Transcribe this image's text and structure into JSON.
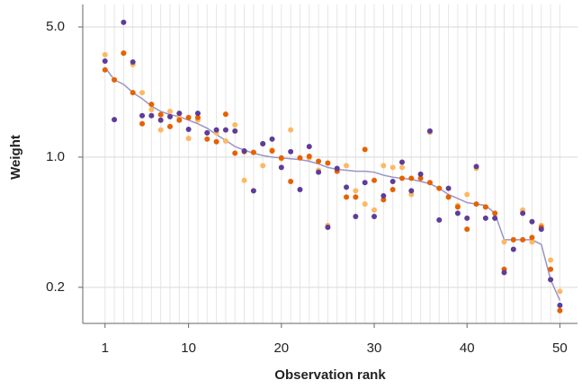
{
  "chart_data": {
    "type": "scatter",
    "x_label": "Observation rank",
    "y_label": "Weight",
    "x": [
      1,
      2,
      3,
      4,
      5,
      6,
      7,
      8,
      9,
      10,
      11,
      12,
      13,
      14,
      15,
      16,
      17,
      18,
      19,
      20,
      21,
      22,
      23,
      24,
      25,
      26,
      27,
      28,
      29,
      30,
      31,
      32,
      33,
      34,
      35,
      36,
      37,
      38,
      39,
      40,
      41,
      42,
      43,
      44,
      45,
      46,
      47,
      48,
      49,
      50
    ],
    "xlim": [
      -1.4,
      51.9
    ],
    "xticks": [
      1,
      10,
      20,
      30,
      40,
      50
    ],
    "ylim": [
      0.128,
      6.6
    ],
    "ylog": true,
    "yticks": [
      {
        "value": 0.2,
        "label": "0.2"
      },
      {
        "value": 1,
        "label": "1.0"
      },
      {
        "value": 5,
        "label": "5.0"
      }
    ],
    "grid": true,
    "series": [
      {
        "color": "#fdb863",
        "values": [
          3.55,
          2.6,
          3.62,
          3.14,
          2.22,
          1.8,
          1.4,
          1.76,
          1.63,
          1.26,
          1.58,
          1.35,
          1.35,
          1.22,
          1.49,
          0.75,
          1.06,
          0.9,
          1.09,
          0.98,
          1.4,
          0.99,
          0.99,
          0.85,
          0.43,
          0.87,
          0.9,
          0.66,
          0.56,
          0.52,
          0.9,
          0.88,
          0.88,
          0.63,
          0.77,
          1.36,
          0.68,
          0.61,
          0.55,
          0.63,
          0.87,
          0.54,
          0.5,
          0.35,
          0.36,
          0.52,
          0.35,
          0.43,
          0.28,
          0.19
        ]
      },
      {
        "color": "#e66101",
        "values": [
          2.94,
          2.6,
          3.62,
          2.22,
          1.51,
          1.92,
          1.69,
          1.46,
          1.58,
          1.63,
          1.63,
          1.25,
          1.21,
          1.7,
          1.05,
          1.07,
          1.06,
          1.18,
          1.08,
          0.99,
          0.74,
          0.99,
          1.01,
          0.95,
          0.93,
          0.84,
          0.61,
          0.61,
          1.1,
          0.75,
          0.59,
          0.67,
          0.77,
          0.77,
          0.77,
          0.73,
          0.68,
          0.61,
          0.54,
          0.41,
          0.56,
          0.54,
          0.5,
          0.25,
          0.36,
          0.36,
          0.37,
          0.42,
          0.25,
          0.15
        ]
      },
      {
        "color": "#5e3c99",
        "values": [
          3.28,
          1.59,
          5.29,
          3.24,
          1.67,
          1.67,
          1.58,
          1.65,
          1.72,
          1.41,
          1.72,
          1.35,
          1.4,
          1.4,
          1.38,
          1.08,
          0.66,
          1.18,
          1.25,
          0.88,
          1.07,
          0.67,
          1.14,
          0.83,
          0.42,
          0.87,
          0.69,
          0.48,
          0.73,
          0.48,
          0.62,
          0.74,
          0.94,
          0.66,
          0.81,
          1.38,
          0.46,
          0.68,
          0.5,
          0.47,
          0.89,
          0.47,
          0.47,
          0.24,
          0.32,
          0.5,
          0.45,
          0.41,
          0.22,
          0.16
        ]
      },
      {
        "color": "#9b94c8",
        "line": true,
        "values": [
          3.03,
          2.6,
          2.46,
          2.22,
          2.06,
          1.88,
          1.76,
          1.69,
          1.65,
          1.58,
          1.51,
          1.43,
          1.32,
          1.23,
          1.14,
          1.09,
          1.05,
          1.02,
          1.0,
          0.99,
          0.98,
          0.97,
          0.95,
          0.92,
          0.88,
          0.86,
          0.85,
          0.84,
          0.84,
          0.83,
          0.8,
          0.78,
          0.77,
          0.76,
          0.74,
          0.72,
          0.68,
          0.63,
          0.6,
          0.57,
          0.56,
          0.55,
          0.5,
          0.36,
          0.36,
          0.36,
          0.36,
          0.34,
          0.22,
          0.17
        ]
      }
    ]
  }
}
